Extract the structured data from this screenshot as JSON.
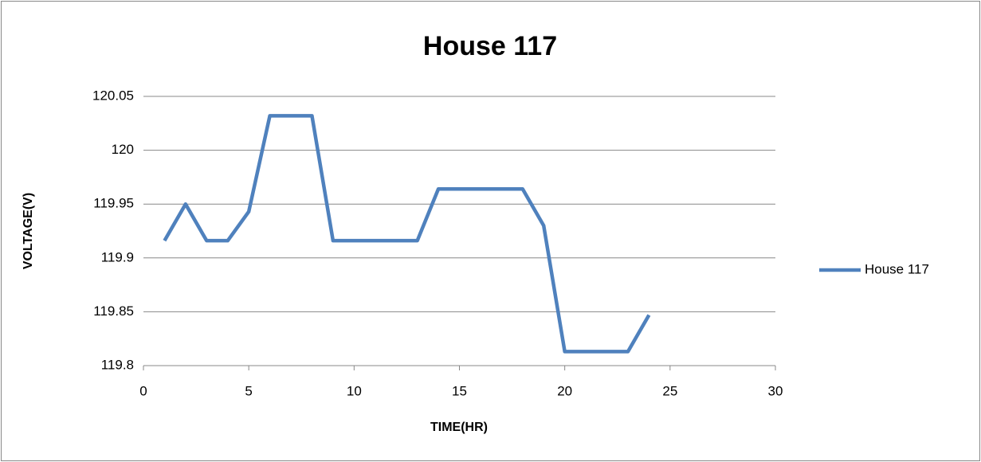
{
  "chart_data": {
    "type": "line",
    "title": "House 117",
    "x_label": "TIME(HR)",
    "y_label": "VOLTAGE(V)",
    "x": [
      1,
      2,
      3,
      4,
      5,
      6,
      7,
      8,
      9,
      10,
      11,
      12,
      13,
      14,
      15,
      16,
      17,
      18,
      19,
      20,
      21,
      22,
      23,
      24
    ],
    "series": [
      {
        "name": "House 117",
        "color": "#4f81bd",
        "values": [
          119.916,
          119.95,
          119.916,
          119.916,
          119.943,
          120.032,
          120.032,
          120.032,
          119.916,
          119.916,
          119.916,
          119.916,
          119.916,
          119.964,
          119.964,
          119.964,
          119.964,
          119.964,
          119.93,
          119.813,
          119.813,
          119.813,
          119.813,
          119.847
        ]
      }
    ],
    "xlim": [
      0,
      30
    ],
    "xticks": [
      0,
      5,
      10,
      15,
      20,
      25,
      30
    ],
    "ylim": [
      119.8,
      120.05
    ],
    "yticks": [
      119.8,
      119.85,
      119.9,
      119.95,
      120,
      120.05
    ],
    "grid": true,
    "legend": "right"
  }
}
